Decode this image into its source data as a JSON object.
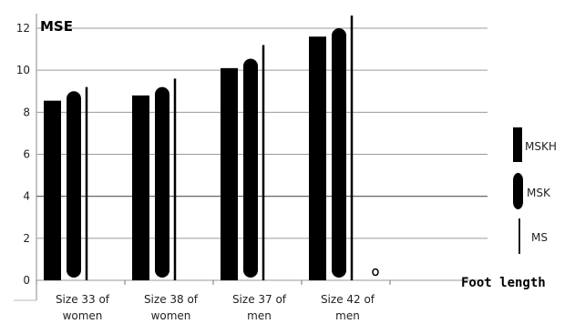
{
  "chart_data": {
    "type": "bar",
    "ylabel": "MSE",
    "xlabel": "Foot length",
    "ylim": [
      0,
      12
    ],
    "yticks": [
      "0",
      "2",
      "4",
      "6",
      "8",
      "10",
      "12"
    ],
    "grid": "horizontal",
    "legend_position": "right",
    "categories": [
      [
        "Size 33 of",
        "women"
      ],
      [
        "Size 38 of",
        "women"
      ],
      [
        "Size 37 of",
        "men"
      ],
      [
        "Size 42 of",
        "men"
      ]
    ],
    "series": [
      {
        "name": "MSKH",
        "marker": "rectangle",
        "values": [
          8.55,
          8.8,
          10.1,
          11.6
        ]
      },
      {
        "name": "MSK",
        "marker": "rounded",
        "values": [
          9.0,
          9.2,
          10.55,
          12.0
        ]
      },
      {
        "name": "MS",
        "marker": "line",
        "values": [
          9.2,
          9.6,
          11.2,
          12.6
        ]
      }
    ]
  }
}
